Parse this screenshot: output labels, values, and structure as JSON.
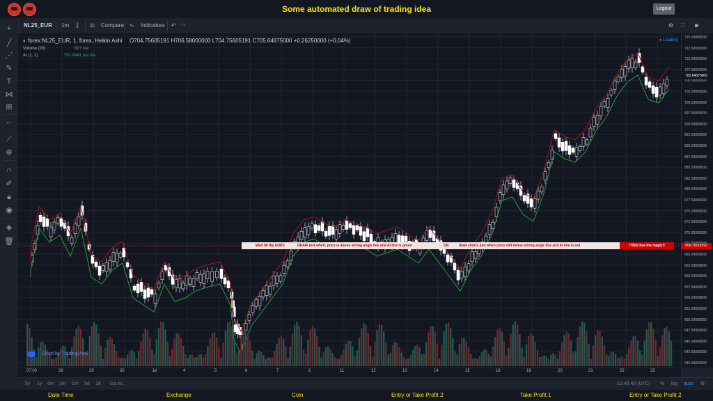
{
  "header": {
    "title": "Some automated draw of trading idea",
    "logout_label": "Logout"
  },
  "toolbar": {
    "symbol": "NL25_EUR",
    "interval": "1m",
    "compare_label": "Compare",
    "indicators_label": "Indicators"
  },
  "legend": {
    "main": "forex:NL25_EUR, 1, forex, Heikin Ashi",
    "ohlc": "O704.75605191  H706.58000000  L704.75605191  C705.64875000  +0.26250000 (+0.04%)",
    "volume": "Volume (20)",
    "volume_value": "827  n/a",
    "ai": "AI (1, 1)",
    "ai_value": "701.8441  n/a  n/a"
  },
  "status": {
    "loading": "Loading"
  },
  "watermark": "Chart by TradingView",
  "annotation": {
    "t1": "Wait till flip ENDS",
    "t2": "DRAW just when:  price is above strong angle line and AI line is green",
    "t3": "OR",
    "t4": "draw shorts just when price still below strong angle line and AI line is red",
    "magic": "THEN See the magic!!"
  },
  "price_axis": {
    "current_price": "666.79119392",
    "last_price": "705.64875000",
    "labels": [
      "715.00000000",
      "712.50000000",
      "710.00000000",
      "707.50000000",
      "705.00000000",
      "702.50000000",
      "700.00000000",
      "697.50000000",
      "695.00000000",
      "692.50000000",
      "690.00000000",
      "687.50000000",
      "685.00000000",
      "682.50000000",
      "680.00000000",
      "677.50000000",
      "675.00000000",
      "672.50000000",
      "670.00000000",
      "667.50000000",
      "665.00000000",
      "662.50000000",
      "660.00000000",
      "657.50000000",
      "655.00000000",
      "652.50000000",
      "650.00000000",
      "647.50000000",
      "645.00000000",
      "642.50000000",
      "640.00000000"
    ]
  },
  "time_axis": {
    "labels": [
      "07:00",
      "28",
      "29",
      "30",
      "Jul",
      "4",
      "5",
      "6",
      "7",
      "8",
      "11",
      "12",
      "13",
      "14",
      "15",
      "18",
      "19",
      "20",
      "21",
      "22",
      "25"
    ]
  },
  "bottom": {
    "ranges": [
      "5y",
      "1y",
      "6m",
      "3m",
      "1m",
      "5d",
      "1d"
    ],
    "goto": "Go to...",
    "time": "12:46:48 (UTC)",
    "percent": "%",
    "log": "log",
    "auto": "auto"
  },
  "footer": [
    "Date Time",
    "Exchange",
    "Coin",
    "Entry or Take Profit 2",
    "Take Profit 1",
    "Entry or Take Profit 2"
  ],
  "colors": {
    "accent": "#f5e30c",
    "up": "#26a69a",
    "down": "#ef5350",
    "bg": "#131722"
  }
}
